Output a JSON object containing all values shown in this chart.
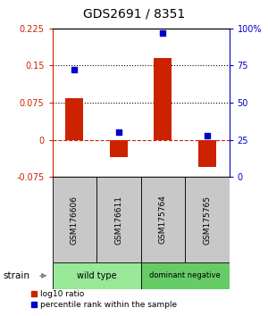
{
  "title": "GDS2691 / 8351",
  "samples": [
    "GSM176606",
    "GSM176611",
    "GSM175764",
    "GSM175765"
  ],
  "log10_ratio": [
    0.085,
    -0.035,
    0.165,
    -0.055
  ],
  "percentile_rank": [
    72,
    30,
    97,
    28
  ],
  "groups": [
    {
      "label": "wild type",
      "samples": [
        0,
        1
      ],
      "color": "#98E898"
    },
    {
      "label": "dominant negative",
      "samples": [
        2,
        3
      ],
      "color": "#66CC66"
    }
  ],
  "ylim_left": [
    -0.075,
    0.225
  ],
  "ylim_right": [
    0,
    100
  ],
  "yticks_left": [
    -0.075,
    0,
    0.075,
    0.15,
    0.225
  ],
  "yticks_right": [
    0,
    25,
    50,
    75,
    100
  ],
  "ytick_labels_left": [
    "-0.075",
    "0",
    "0.075",
    "0.15",
    "0.225"
  ],
  "ytick_labels_right": [
    "0",
    "25",
    "50",
    "75",
    "100%"
  ],
  "hlines": [
    0.075,
    0.15
  ],
  "bar_color": "#CC2200",
  "dot_color": "#0000CC",
  "bar_width": 0.4,
  "left_axis_color": "#CC2200",
  "right_axis_color": "#0000CC",
  "legend_bar_label": "log10 ratio",
  "legend_dot_label": "percentile rank within the sample",
  "background_sample_box": "#C8C8C8"
}
